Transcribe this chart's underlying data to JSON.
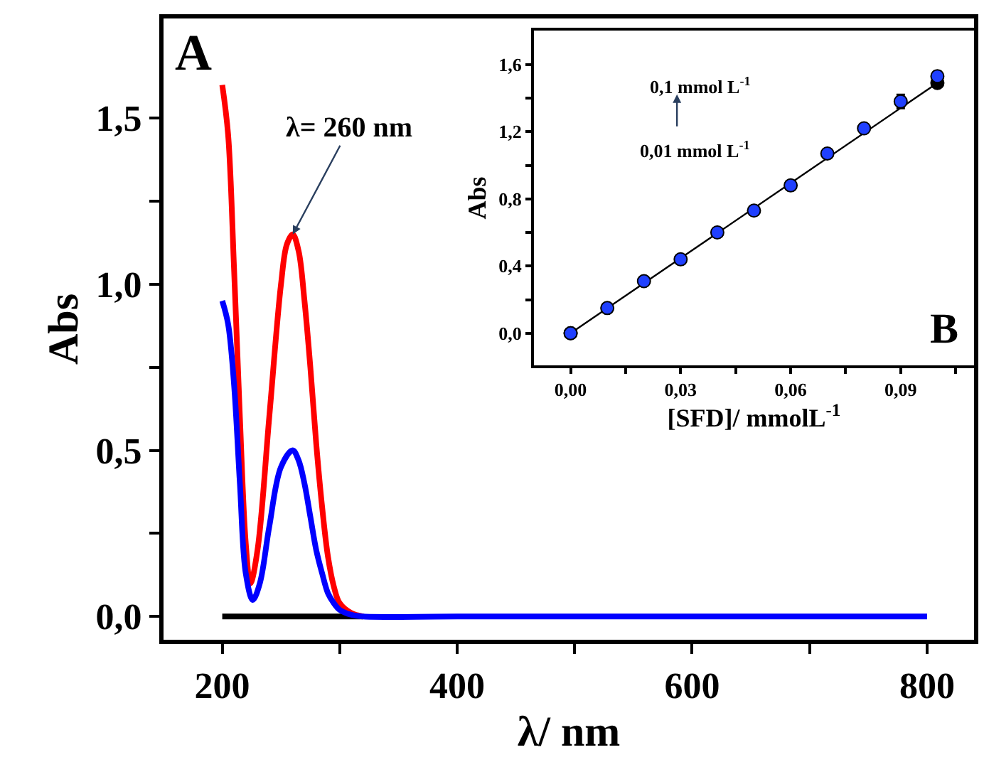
{
  "chart_data": [
    {
      "type": "line",
      "xlabel": "λ/ nm",
      "ylabel": "Abs",
      "xlim": [
        150,
        840
      ],
      "ylim": [
        -0.07,
        1.8
      ],
      "xticks": [
        200,
        {
          "value": 300,
          "label": null
        },
        400,
        {
          "value": 500,
          "label": null
        },
        600,
        {
          "value": 700,
          "label": null
        },
        800
      ],
      "yticks": [
        {
          "value": 0,
          "label": "0,0"
        },
        {
          "value": 0.25,
          "label": null
        },
        {
          "value": 0.5,
          "label": "0,5"
        },
        {
          "value": 0.75,
          "label": null
        },
        {
          "value": 1.0,
          "label": "1,0"
        },
        {
          "value": 1.25,
          "label": null
        },
        {
          "value": 1.5,
          "label": "1,5"
        }
      ],
      "marker": "none",
      "line_style": "solid",
      "annotations": [
        "A",
        {
          "text": "λ= 260 nm",
          "x": 260,
          "y": 1.15
        }
      ],
      "series": [
        {
          "color": "#000000",
          "x": [
            200,
            250,
            300,
            320
          ],
          "values": [
            0,
            0,
            0,
            0
          ]
        },
        {
          "color": "#ff0000",
          "x": [
            200,
            205,
            210,
            215,
            220,
            224,
            230,
            240,
            250,
            255,
            260,
            265,
            270,
            275,
            280,
            285,
            290,
            295,
            300,
            310,
            320
          ],
          "values": [
            1.6,
            1.45,
            1.05,
            0.6,
            0.22,
            0.1,
            0.2,
            0.6,
            1.0,
            1.12,
            1.15,
            1.1,
            0.95,
            0.75,
            0.52,
            0.33,
            0.18,
            0.09,
            0.04,
            0.01,
            0
          ]
        },
        {
          "color": "#0000ff",
          "x": [
            200,
            205,
            210,
            215,
            220,
            226,
            232,
            240,
            250,
            260,
            265,
            270,
            275,
            280,
            285,
            290,
            295,
            300,
            310,
            320,
            400,
            600,
            800
          ],
          "values": [
            0.95,
            0.88,
            0.7,
            0.4,
            0.13,
            0.05,
            0.1,
            0.27,
            0.45,
            0.5,
            0.47,
            0.4,
            0.3,
            0.2,
            0.13,
            0.07,
            0.04,
            0.02,
            0.005,
            0,
            0,
            0,
            0
          ]
        }
      ]
    },
    {
      "type": "scatter",
      "xlabel": "[SFD]/ mmolL$^{-1}$",
      "ylabel": "Abs",
      "xlim": [
        -0.01,
        0.11
      ],
      "ylim": [
        -0.19,
        1.8
      ],
      "xticks": [
        {
          "value": 0,
          "label": "0,00"
        },
        {
          "value": 0.015,
          "label": null
        },
        {
          "value": 0.03,
          "label": "0,03"
        },
        {
          "value": 0.045,
          "label": null
        },
        {
          "value": 0.06,
          "label": "0,06"
        },
        {
          "value": 0.075,
          "label": null
        },
        {
          "value": 0.09,
          "label": "0,09"
        },
        {
          "value": 0.105,
          "label": null
        }
      ],
      "yticks": [
        {
          "value": 0,
          "label": "0,0"
        },
        {
          "value": 0.2,
          "label": null
        },
        {
          "value": 0.4,
          "label": "0,4"
        },
        {
          "value": 0.6,
          "label": null
        },
        {
          "value": 0.8,
          "label": "0,8"
        },
        {
          "value": 1.0,
          "label": null
        },
        {
          "value": 1.2,
          "label": "1,2"
        },
        {
          "value": 1.4,
          "label": null
        },
        {
          "value": 1.6,
          "label": "1,6"
        }
      ],
      "marker": "circle",
      "annotations": [
        "0,1 mmol L$^{-1}$",
        "0,01 mmol L$^{-1}$",
        "B"
      ],
      "series": [
        {
          "type": "line",
          "color": "#000000",
          "x": [
            0,
            0.1
          ],
          "values": [
            0,
            1.49
          ]
        },
        {
          "color": "#2040ff",
          "x": [
            0,
            0.01,
            0.02,
            0.03,
            0.04,
            0.05,
            0.06,
            0.07,
            0.08,
            0.09,
            0.1
          ],
          "values": [
            0,
            0.15,
            0.31,
            0.44,
            0.6,
            0.73,
            0.88,
            1.07,
            1.22,
            1.38,
            1.53
          ],
          "errors": [
            0.01,
            0.01,
            0.01,
            0.01,
            0.01,
            0.01,
            0.01,
            0.01,
            0.01,
            0.04,
            0.03
          ]
        }
      ]
    }
  ]
}
